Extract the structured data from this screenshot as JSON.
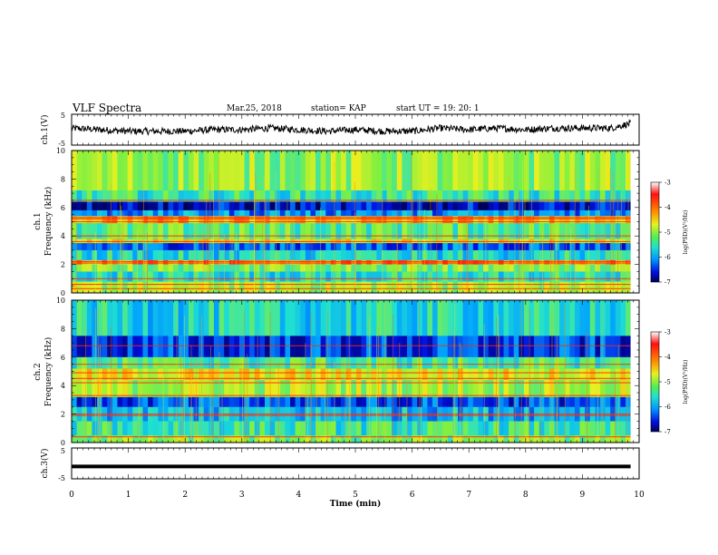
{
  "header": {
    "title": "VLF Spectra",
    "date": "Mar.25, 2018",
    "station": "station= KAP",
    "start": "start  UT =   19: 20: 1"
  },
  "colors": {
    "trace": "#000000",
    "spectrogram_background": "#2ecfd0",
    "colormap": [
      "#00005a",
      "#0010e0",
      "#00a0ff",
      "#20e0d0",
      "#80f040",
      "#e8f020",
      "#ff9000",
      "#ff1010",
      "#ffffff"
    ]
  },
  "chart_data": [
    {
      "type": "line",
      "title": "ch.1(V)",
      "ylabel": "ch.1(V)",
      "ylim": [
        -5,
        5
      ],
      "yticks": [
        "5",
        "-5"
      ],
      "xlim": [
        0,
        10
      ],
      "x_extent_of_data": 9.85,
      "approx_level": 0,
      "series": [
        {
          "x": [
            0,
            0.5,
            1,
            1.5,
            2,
            2.5,
            3,
            3.5,
            4,
            4.5,
            5,
            5.5,
            6,
            6.5,
            7,
            7.5,
            8,
            8.5,
            9,
            9.5,
            9.85
          ],
          "values": [
            0.5,
            0,
            -0.5,
            -0.5,
            -0.5,
            0,
            0,
            0.5,
            0,
            -0.5,
            0,
            -0.5,
            -0.5,
            0.5,
            0,
            0.5,
            0,
            0.5,
            0.5,
            0.5,
            2
          ]
        }
      ]
    },
    {
      "type": "heatmap",
      "ylabel": "ch.1\nFrequency (kHz)",
      "xlim": [
        0,
        10
      ],
      "ylim": [
        0,
        10
      ],
      "yticks": [
        "0",
        "2",
        "4",
        "6",
        "8",
        "10"
      ],
      "x_extent_of_data": 9.85,
      "colorbar": {
        "label": "log(PSD)(V²/Hz)",
        "ticks": [
          "-3",
          "-4",
          "-5",
          "-6",
          "-7"
        ],
        "range": [
          -7,
          -3
        ]
      },
      "bands_khz": [
        {
          "from": 0,
          "to": 0.8,
          "level": -4.8
        },
        {
          "from": 0.8,
          "to": 1.5,
          "level": -5.5
        },
        {
          "from": 1.5,
          "to": 2.0,
          "level": -5.0
        },
        {
          "from": 2.0,
          "to": 2.3,
          "level": -4.0
        },
        {
          "from": 2.3,
          "to": 3.0,
          "level": -5.6
        },
        {
          "from": 3.0,
          "to": 3.5,
          "level": -6.2
        },
        {
          "from": 3.5,
          "to": 3.8,
          "level": -4.5
        },
        {
          "from": 3.8,
          "to": 4.9,
          "level": -5.2
        },
        {
          "from": 4.9,
          "to": 5.4,
          "level": -4.2
        },
        {
          "from": 5.4,
          "to": 5.8,
          "level": -6.0
        },
        {
          "from": 5.8,
          "to": 6.4,
          "level": -6.6
        },
        {
          "from": 6.4,
          "to": 7.2,
          "level": -5.4
        },
        {
          "from": 7.2,
          "to": 10,
          "level": -4.9
        }
      ],
      "lines_khz": [
        0.3,
        0.6,
        1.0,
        2.1,
        2.2,
        3.6,
        4.0,
        5.0,
        5.2,
        5.3,
        6.5
      ]
    },
    {
      "type": "heatmap",
      "ylabel": "ch.2\nFrequency (kHz)",
      "xlim": [
        0,
        10
      ],
      "ylim": [
        0,
        10
      ],
      "yticks": [
        "0",
        "2",
        "4",
        "6",
        "8",
        "10"
      ],
      "x_extent_of_data": 9.85,
      "colorbar": {
        "label": "log(PSD)(V²/Hz)",
        "ticks": [
          "-3",
          "-4",
          "-5",
          "-6",
          "-7"
        ],
        "range": [
          -7,
          -3
        ]
      },
      "bands_khz": [
        {
          "from": 0,
          "to": 0.5,
          "level": -5.0
        },
        {
          "from": 0.5,
          "to": 1.5,
          "level": -5.4
        },
        {
          "from": 1.5,
          "to": 2.5,
          "level": -5.8
        },
        {
          "from": 2.5,
          "to": 3.2,
          "level": -6.3
        },
        {
          "from": 3.2,
          "to": 4.4,
          "level": -4.8
        },
        {
          "from": 4.4,
          "to": 5.2,
          "level": -4.5
        },
        {
          "from": 5.2,
          "to": 6.0,
          "level": -5.3
        },
        {
          "from": 6.0,
          "to": 7.5,
          "level": -6.4
        },
        {
          "from": 7.5,
          "to": 10,
          "level": -5.6
        }
      ],
      "lines_khz": [
        0.4,
        1.9,
        2.0,
        3.3,
        4.2,
        4.5,
        4.9,
        5.5,
        6.8
      ]
    },
    {
      "type": "line",
      "title": "ch.3(V)",
      "ylabel": "ch.3(V)",
      "xlabel": "Time  (min)",
      "xlim": [
        0,
        10
      ],
      "ylim": [
        -5,
        5
      ],
      "yticks": [
        "5",
        "-5"
      ],
      "xticks": [
        "0",
        "1",
        "2",
        "3",
        "4",
        "5",
        "6",
        "7",
        "8",
        "9",
        "10"
      ],
      "x_extent_of_data": 9.85,
      "series": [
        {
          "x": [
            0,
            9.85
          ],
          "values": [
            -1,
            -1
          ]
        }
      ]
    }
  ]
}
